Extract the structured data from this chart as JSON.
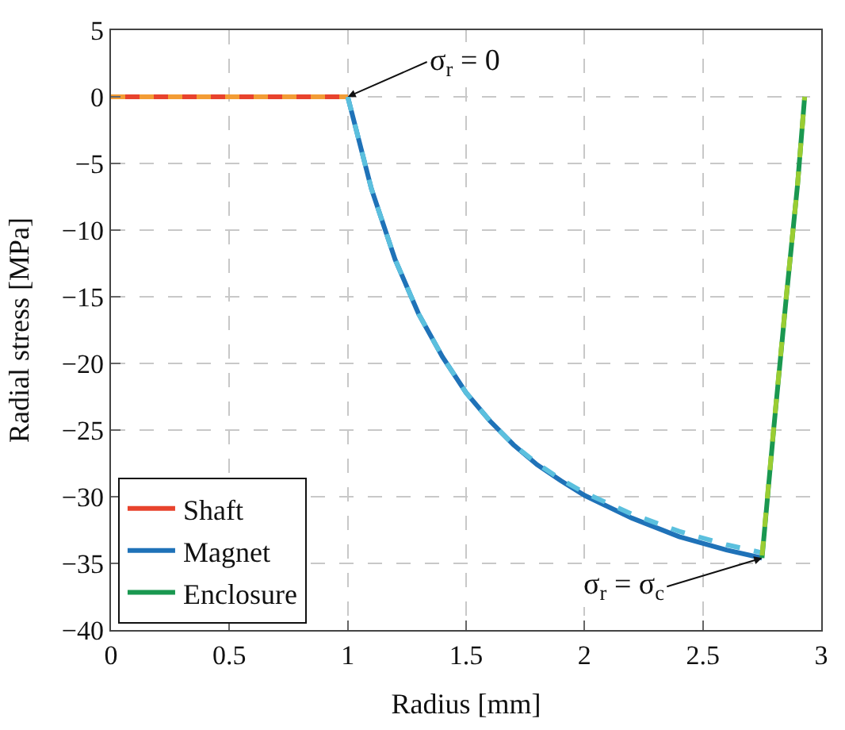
{
  "chart_data": {
    "type": "line",
    "xlabel": "Radius [mm]",
    "ylabel": "Radial stress [MPa]",
    "xlim": [
      0,
      3
    ],
    "xticks": [
      0,
      0.5,
      1,
      1.5,
      2,
      2.5,
      3
    ],
    "ylim": [
      -40,
      5
    ],
    "yticks": [
      {
        "value": -40,
        "label": "−40"
      },
      {
        "value": -35,
        "label": "−35"
      },
      {
        "value": -30,
        "label": "−30"
      },
      {
        "value": -25,
        "label": "−25"
      },
      {
        "value": -20,
        "label": "−20"
      },
      {
        "value": -15,
        "label": "−15"
      },
      {
        "value": -10,
        "label": "−10"
      },
      {
        "value": -5,
        "label": "−5"
      },
      0,
      5
    ],
    "grid": true,
    "legend": "bottom left",
    "marker": "none",
    "series": [
      {
        "name": "Shaft",
        "color": "#e8432d",
        "line_style": "solid",
        "x": [
          0,
          1
        ],
        "values": [
          0,
          0
        ]
      },
      {
        "name": "Magnet",
        "color": "#1f72b8",
        "line_style": "solid",
        "x": [
          1,
          1.1,
          1.2,
          1.3,
          1.4,
          1.5,
          1.6,
          1.7,
          1.8,
          1.9,
          2.0,
          2.2,
          2.4,
          2.6,
          2.75
        ],
        "values": [
          0,
          -6.9,
          -12.2,
          -16.3,
          -19.5,
          -22.2,
          -24.3,
          -26.1,
          -27.6,
          -28.8,
          -29.9,
          -31.6,
          -33.0,
          -34.0,
          -34.6
        ]
      },
      {
        "name": "Enclosure",
        "color": "#1a9850",
        "line_style": "solid",
        "x": [
          2.75,
          2.8,
          2.85,
          2.9,
          2.93
        ],
        "values": [
          -34.6,
          -24.8,
          -15.5,
          -6.6,
          0
        ]
      },
      {
        "color": "#f39c35",
        "line_style": "dashed",
        "x": [
          0,
          1
        ],
        "values": [
          0,
          0
        ]
      },
      {
        "color": "#5bc0de",
        "line_style": "dashed",
        "x": [
          1,
          1.1,
          1.2,
          1.3,
          1.4,
          1.5,
          1.6,
          1.7,
          1.8,
          1.9,
          2.0,
          2.2,
          2.4,
          2.6,
          2.75
        ],
        "values": [
          0,
          -6.9,
          -12.2,
          -16.3,
          -19.5,
          -22.2,
          -24.3,
          -26.1,
          -27.5,
          -28.7,
          -29.7,
          -31.3,
          -32.6,
          -33.6,
          -34.2
        ]
      },
      {
        "color": "#9acd32",
        "line_style": "dashed",
        "x": [
          2.75,
          2.8,
          2.85,
          2.9,
          2.93
        ],
        "values": [
          -34.4,
          -24.7,
          -15.4,
          -6.6,
          0
        ]
      }
    ],
    "annotations": [
      {
        "text": "σ$_{r}$ = 0",
        "x": 1,
        "y": 0
      },
      {
        "text": "σ$_{r}$ = σ$_{c}$",
        "x": 2.75,
        "y": -34.6
      }
    ]
  }
}
